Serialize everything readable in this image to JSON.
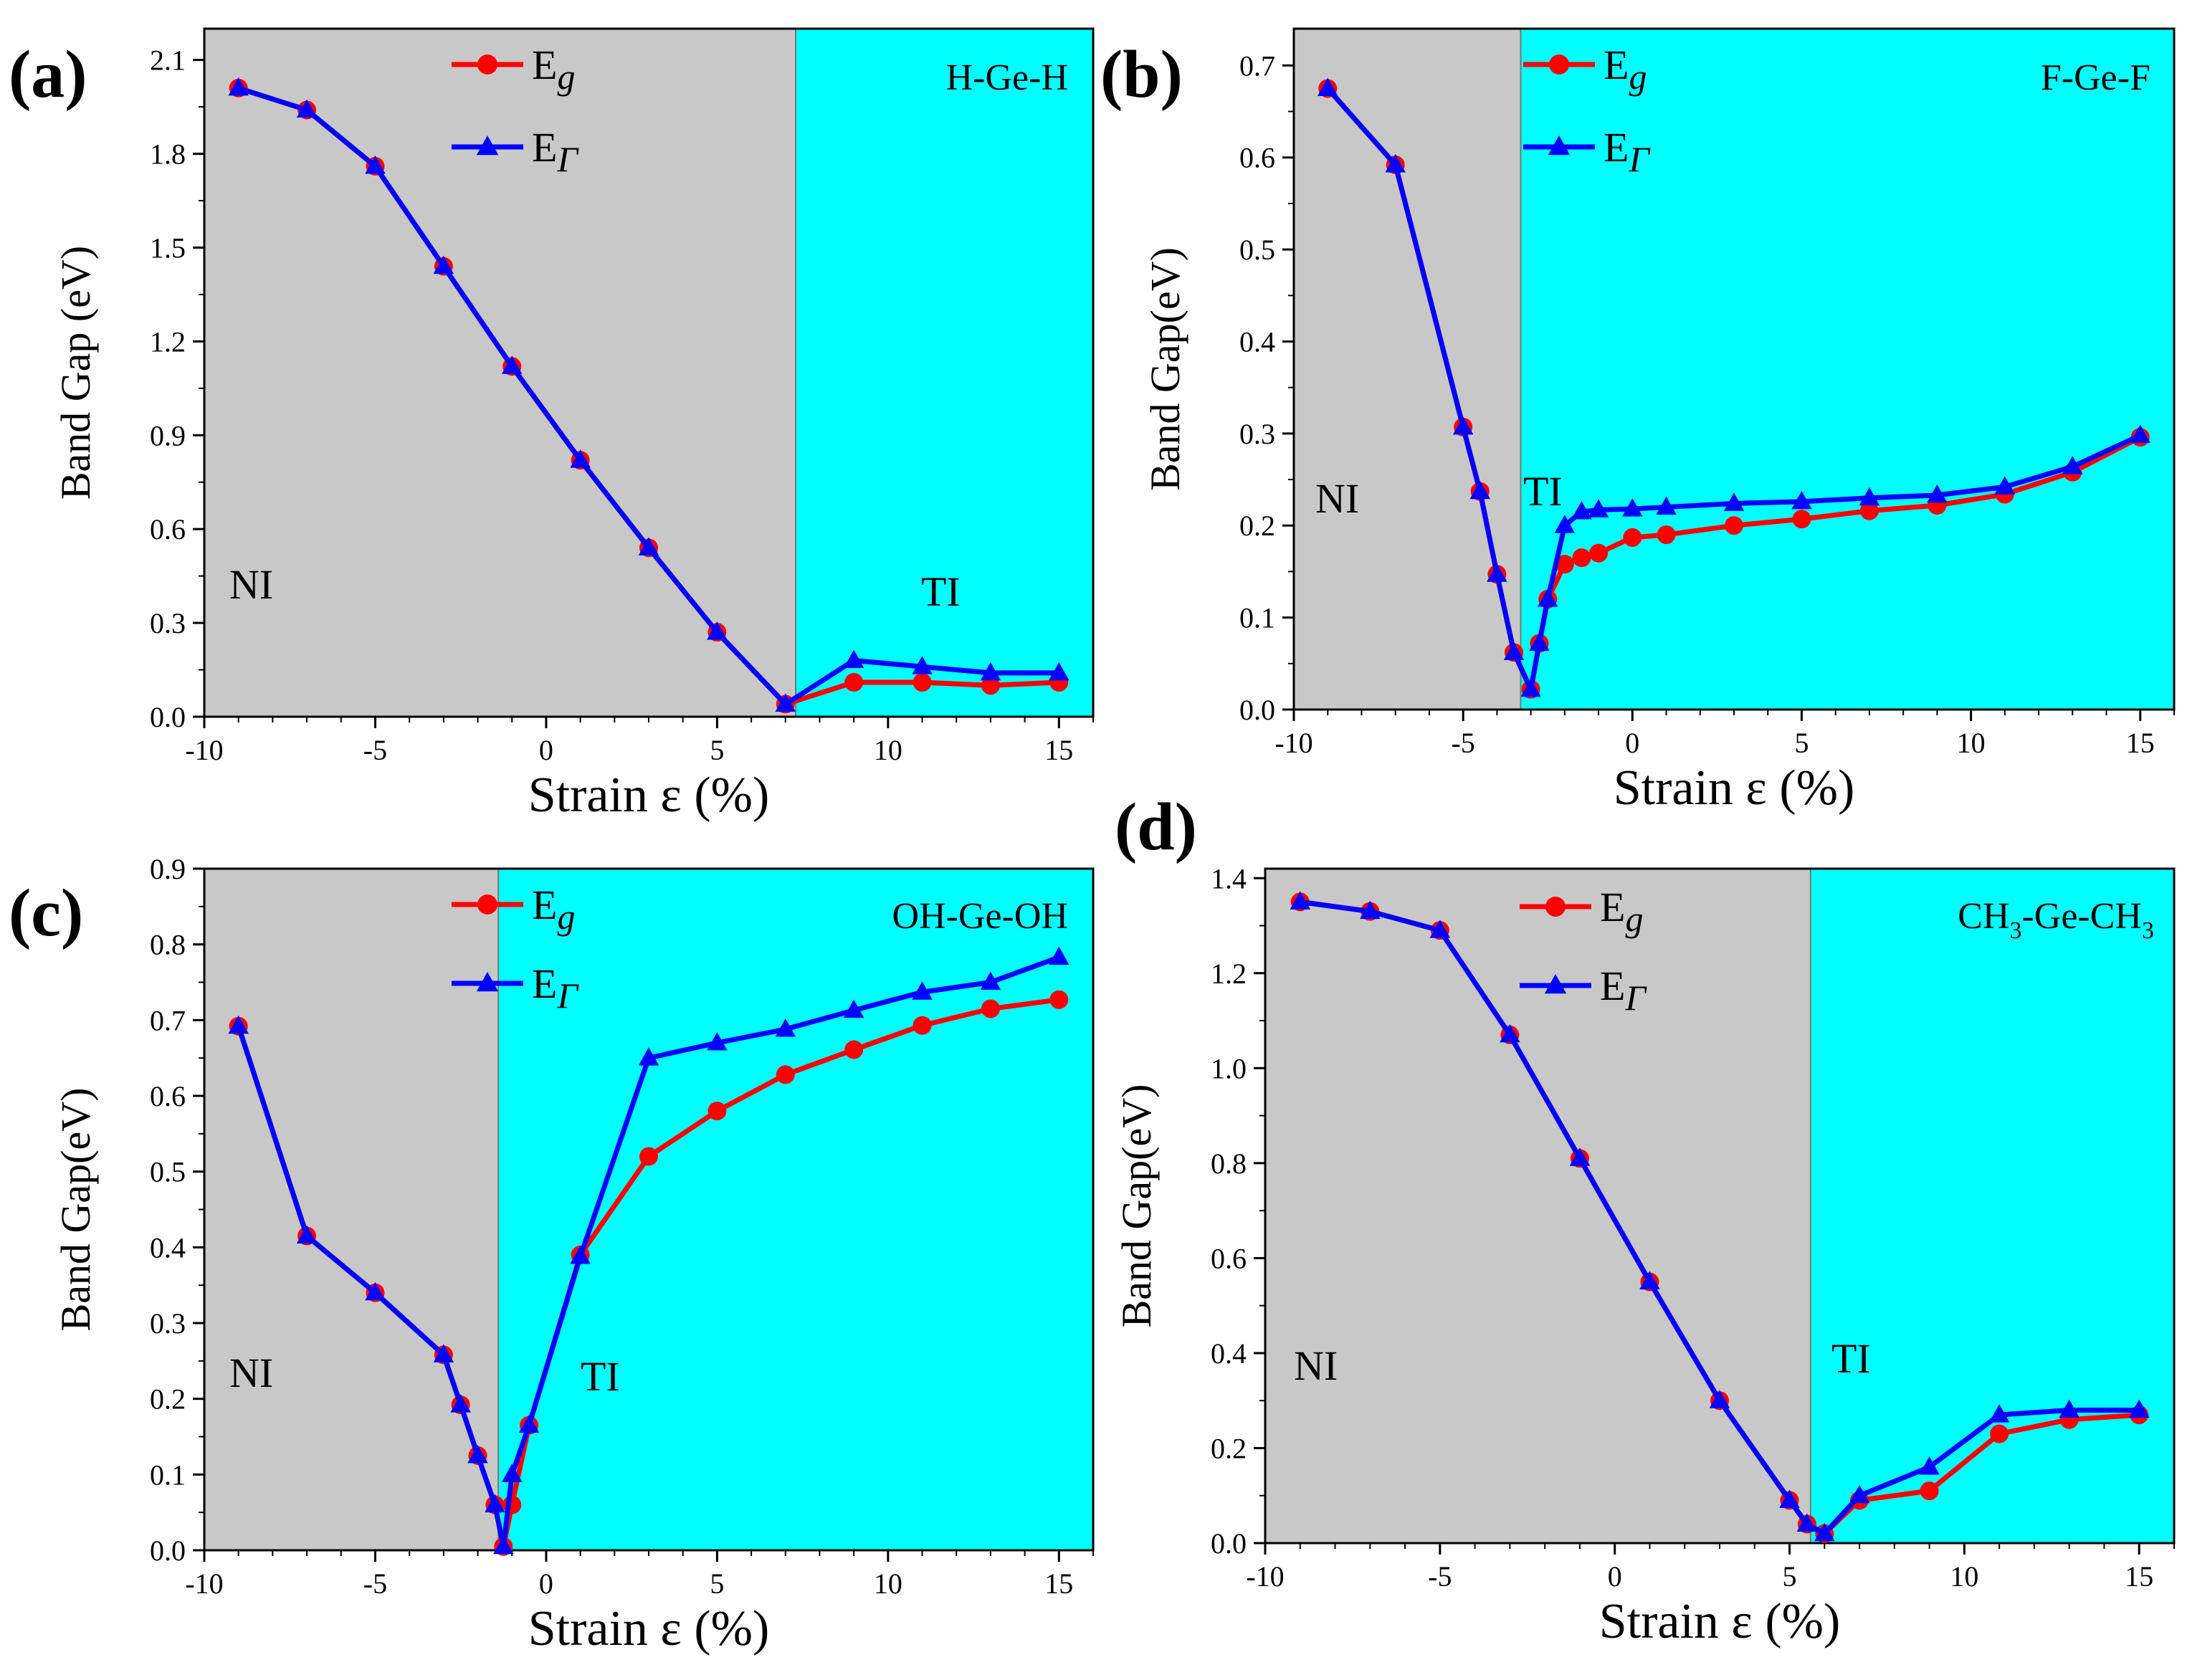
{
  "chart_data": [
    {
      "type": "line",
      "panel_label": "(a)",
      "material": "H-Ge-H",
      "xlabel": "Strain ε (%)",
      "ylabel": "Band Gap (eV)",
      "xlim": [
        -10,
        16
      ],
      "ylim": [
        0,
        2.2
      ],
      "xticks": [
        "-10",
        "-5",
        "0",
        "5",
        "10",
        "15"
      ],
      "yticks": [
        "0.0",
        "0.3",
        "0.6",
        "0.9",
        "1.2",
        "1.5",
        "1.8",
        "2.1"
      ],
      "transition_x": 7.3,
      "region_labels": {
        "left": "NI",
        "right": "TI"
      },
      "region_colors": {
        "left": "#c8c8c8",
        "right": "#00ffff"
      },
      "legend": [
        {
          "name": "E",
          "sub": "g",
          "color": "#ff0000",
          "marker": "circle"
        },
        {
          "name": "E",
          "sub": "Γ",
          "color": "#0000ff",
          "marker": "triangle"
        }
      ],
      "series": [
        {
          "name": "Eg",
          "color": "#ff0000",
          "marker": "circle",
          "x": [
            -9,
            -7,
            -5,
            -3,
            -1,
            1,
            3,
            5,
            7,
            9,
            11,
            13,
            15
          ],
          "y": [
            2.01,
            1.94,
            1.76,
            1.44,
            1.12,
            0.82,
            0.54,
            0.27,
            0.04,
            0.11,
            0.11,
            0.1,
            0.11
          ]
        },
        {
          "name": "EΓ",
          "color": "#0000ff",
          "marker": "triangle",
          "x": [
            -9,
            -7,
            -5,
            -3,
            -1,
            1,
            3,
            5,
            7,
            9,
            11,
            13,
            15
          ],
          "y": [
            2.01,
            1.94,
            1.76,
            1.44,
            1.12,
            0.82,
            0.54,
            0.27,
            0.04,
            0.18,
            0.16,
            0.14,
            0.14
          ]
        }
      ]
    },
    {
      "type": "line",
      "panel_label": "(b)",
      "material": "F-Ge-F",
      "xlabel": "Strain ε (%)",
      "ylabel": "Band Gap(eV)",
      "xlim": [
        -10,
        16
      ],
      "ylim": [
        0,
        0.74
      ],
      "xticks": [
        "-10",
        "-5",
        "0",
        "5",
        "10",
        "15"
      ],
      "yticks": [
        "0.0",
        "0.1",
        "0.2",
        "0.3",
        "0.4",
        "0.5",
        "0.6",
        "0.7"
      ],
      "transition_x": -3.3,
      "region_labels": {
        "left": "NI",
        "right": "TI"
      },
      "region_colors": {
        "left": "#c8c8c8",
        "right": "#00ffff"
      },
      "legend": [
        {
          "name": "E",
          "sub": "g",
          "color": "#ff0000",
          "marker": "circle"
        },
        {
          "name": "E",
          "sub": "Γ",
          "color": "#0000ff",
          "marker": "triangle"
        }
      ],
      "series": [
        {
          "name": "Eg",
          "color": "#ff0000",
          "marker": "circle",
          "x": [
            -9,
            -7,
            -5,
            -4.5,
            -4,
            -3.5,
            -3,
            -2.75,
            -2.5,
            -2,
            -1.5,
            -1,
            0,
            1,
            3,
            5,
            7,
            9,
            11,
            13,
            15
          ],
          "y": [
            0.675,
            0.592,
            0.307,
            0.237,
            0.147,
            0.062,
            0.022,
            0.072,
            0.12,
            0.158,
            0.165,
            0.17,
            0.187,
            0.19,
            0.2,
            0.207,
            0.216,
            0.222,
            0.234,
            0.258,
            0.296
          ]
        },
        {
          "name": "EΓ",
          "color": "#0000ff",
          "marker": "triangle",
          "x": [
            -9,
            -7,
            -5,
            -4.5,
            -4,
            -3.5,
            -3,
            -2.75,
            -2.5,
            -2,
            -1.5,
            -1,
            0,
            1,
            3,
            5,
            7,
            9,
            11,
            13,
            15
          ],
          "y": [
            0.675,
            0.592,
            0.307,
            0.237,
            0.147,
            0.062,
            0.022,
            0.072,
            0.12,
            0.2,
            0.215,
            0.217,
            0.218,
            0.22,
            0.224,
            0.226,
            0.23,
            0.233,
            0.242,
            0.264,
            0.298
          ]
        }
      ]
    },
    {
      "type": "line",
      "panel_label": "(c)",
      "material": "OH-Ge-OH",
      "xlabel": "Strain ε (%)",
      "ylabel": "Band Gap(eV)",
      "xlim": [
        -10,
        16
      ],
      "ylim": [
        0,
        0.9
      ],
      "xticks": [
        "-10",
        "-5",
        "0",
        "5",
        "10",
        "15"
      ],
      "yticks": [
        "0.0",
        "0.1",
        "0.2",
        "0.3",
        "0.4",
        "0.5",
        "0.6",
        "0.7",
        "0.8",
        "0.9"
      ],
      "transition_x": -1.4,
      "region_labels": {
        "left": "NI",
        "right": "TI"
      },
      "region_colors": {
        "left": "#c8c8c8",
        "right": "#00ffff"
      },
      "legend": [
        {
          "name": "E",
          "sub": "g",
          "color": "#ff0000",
          "marker": "circle"
        },
        {
          "name": "E",
          "sub": "Γ",
          "color": "#0000ff",
          "marker": "triangle"
        }
      ],
      "series": [
        {
          "name": "Eg",
          "color": "#ff0000",
          "marker": "circle",
          "x": [
            -9,
            -7,
            -5,
            -3,
            -2.5,
            -2,
            -1.5,
            -1.25,
            -1,
            -0.5,
            1,
            3,
            5,
            7,
            9,
            11,
            13,
            15
          ],
          "y": [
            0.692,
            0.415,
            0.34,
            0.258,
            0.192,
            0.125,
            0.06,
            0.005,
            0.06,
            0.165,
            0.39,
            0.52,
            0.58,
            0.628,
            0.661,
            0.693,
            0.715,
            0.727
          ]
        },
        {
          "name": "EΓ",
          "color": "#0000ff",
          "marker": "triangle",
          "x": [
            -9,
            -7,
            -5,
            -3,
            -2.5,
            -2,
            -1.5,
            -1.25,
            -1,
            -0.5,
            1,
            3,
            5,
            7,
            9,
            11,
            13,
            15
          ],
          "y": [
            0.692,
            0.415,
            0.34,
            0.258,
            0.192,
            0.125,
            0.06,
            0.005,
            0.1,
            0.165,
            0.388,
            0.65,
            0.67,
            0.688,
            0.713,
            0.737,
            0.75,
            0.783
          ]
        }
      ]
    },
    {
      "type": "line",
      "panel_label": "(d)",
      "material_parts": [
        "CH",
        "3",
        "-Ge-CH",
        "3"
      ],
      "xlabel": "Strain ε (%)",
      "ylabel": "Band Gap(eV)",
      "xlim": [
        -10,
        16
      ],
      "ylim": [
        0,
        1.42
      ],
      "xticks": [
        "-10",
        "-5",
        "0",
        "5",
        "10",
        "15"
      ],
      "yticks": [
        "0.0",
        "0.2",
        "0.4",
        "0.6",
        "0.8",
        "1.0",
        "1.2",
        "1.4"
      ],
      "transition_x": 5.6,
      "region_labels": {
        "left": "NI",
        "right": "TI"
      },
      "region_colors": {
        "left": "#c8c8c8",
        "right": "#00ffff"
      },
      "legend": [
        {
          "name": "E",
          "sub": "g",
          "color": "#ff0000",
          "marker": "circle"
        },
        {
          "name": "E",
          "sub": "Γ",
          "color": "#0000ff",
          "marker": "triangle"
        }
      ],
      "series": [
        {
          "name": "Eg",
          "color": "#ff0000",
          "marker": "circle",
          "x": [
            -9,
            -7,
            -5,
            -3,
            -1,
            1,
            3,
            5,
            5.5,
            6,
            7,
            9,
            11,
            13,
            15
          ],
          "y": [
            1.35,
            1.33,
            1.29,
            1.07,
            0.81,
            0.55,
            0.3,
            0.09,
            0.04,
            0.02,
            0.09,
            0.11,
            0.23,
            0.26,
            0.27
          ]
        },
        {
          "name": "EΓ",
          "color": "#0000ff",
          "marker": "triangle",
          "x": [
            -9,
            -7,
            -5,
            -3,
            -1,
            1,
            3,
            5,
            5.5,
            6,
            7,
            9,
            11,
            13,
            15
          ],
          "y": [
            1.35,
            1.33,
            1.29,
            1.07,
            0.81,
            0.55,
            0.3,
            0.09,
            0.04,
            0.02,
            0.1,
            0.16,
            0.27,
            0.28,
            0.28
          ]
        }
      ]
    }
  ]
}
